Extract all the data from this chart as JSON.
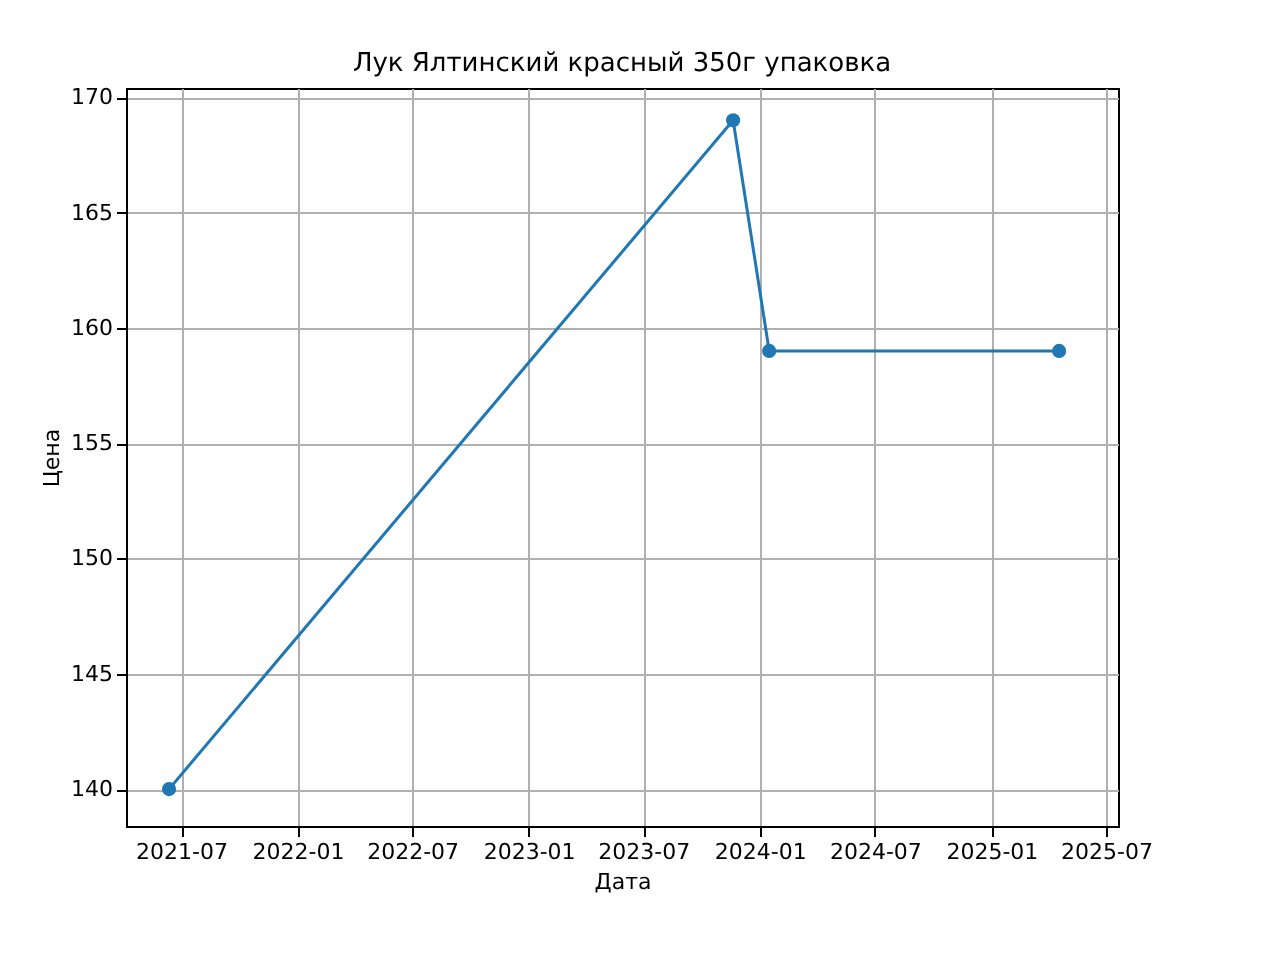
{
  "chart_data": {
    "type": "line",
    "title": "Лук Ялтинский красный 350г упаковка",
    "xlabel": "Дата",
    "ylabel": "Цена",
    "x": [
      "2021-06-12",
      "2023-11-20",
      "2024-01-16",
      "2025-04-18"
    ],
    "series": [
      {
        "color": "#1f77b4",
        "values": [
          140,
          169,
          159,
          159
        ]
      }
    ],
    "xlim": [
      "2021-04-05",
      "2025-07-20"
    ],
    "xticks": [
      "2021-07",
      "2022-01",
      "2022-07",
      "2023-01",
      "2023-07",
      "2024-01",
      "2024-07",
      "2025-01",
      "2025-07"
    ],
    "ylim": [
      138.4,
      170.4
    ],
    "yticks": [
      140,
      145,
      150,
      155,
      160,
      165,
      170
    ],
    "grid": true,
    "marker": "circle",
    "line_style": "solid"
  }
}
